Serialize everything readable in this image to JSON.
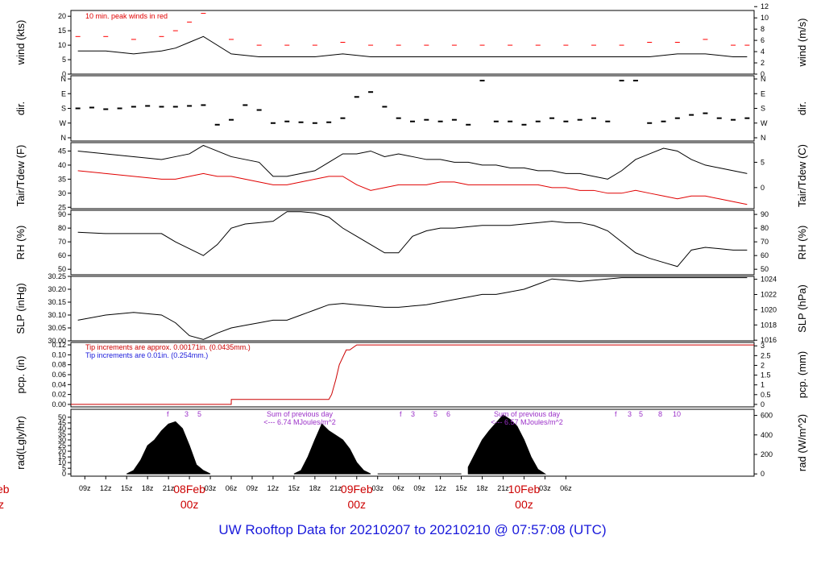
{
  "title": "UW Rooftop Data for 20210207  to  20210210 @ 07:57:08  (UTC)",
  "chart_data": [
    {
      "type": "line",
      "name": "wind",
      "ylabel": "wind (kts)",
      "ylabel_right": "wind (m/s)",
      "ylim": [
        0,
        22
      ],
      "yticks": [
        "0",
        "5",
        "10",
        "15",
        "20"
      ],
      "yticks_right": [
        "0",
        "2",
        "4",
        "6",
        "8",
        "10",
        "12"
      ],
      "annotation": "10 min. peak winds in red",
      "series": [
        {
          "label": "wind",
          "color": "#000000",
          "x": [
            8,
            12,
            16,
            20,
            22,
            24,
            26,
            30,
            34,
            38,
            42,
            46,
            50,
            54,
            58,
            62,
            66,
            70,
            74,
            78,
            82,
            86,
            90,
            94,
            98,
            102,
            104
          ],
          "values": [
            8,
            8,
            7,
            8,
            9,
            11,
            13,
            7,
            6,
            6,
            6,
            7,
            6,
            6,
            6,
            6,
            6,
            6,
            6,
            6,
            6,
            6,
            6,
            7,
            7,
            6,
            6
          ]
        },
        {
          "label": "peak",
          "color": "#ff0000",
          "x": [
            8,
            12,
            16,
            20,
            22,
            24,
            26,
            30,
            34,
            38,
            42,
            46,
            50,
            54,
            58,
            62,
            66,
            70,
            74,
            78,
            82,
            86,
            90,
            94,
            98,
            102,
            104
          ],
          "values": [
            13,
            13,
            12,
            13,
            15,
            18,
            21,
            12,
            10,
            10,
            10,
            11,
            10,
            10,
            10,
            10,
            10,
            10,
            10,
            10,
            10,
            10,
            11,
            11,
            12,
            10,
            10
          ]
        }
      ]
    },
    {
      "type": "scatter",
      "name": "dir",
      "ylabel": "dir.",
      "ylabel_right": "dir.",
      "yticks": [
        "N",
        "W",
        "S",
        "E",
        "N"
      ],
      "series": [
        {
          "label": "dir",
          "color": "#000000",
          "x": [
            8,
            10,
            12,
            14,
            16,
            18,
            20,
            22,
            24,
            26,
            28,
            30,
            32,
            34,
            36,
            38,
            40,
            42,
            44,
            46,
            48,
            50,
            52,
            54,
            56,
            58,
            60,
            62,
            64,
            66,
            68,
            70,
            72,
            74,
            76,
            78,
            80,
            82,
            84,
            86,
            88,
            90,
            92,
            94,
            96,
            98,
            100,
            102,
            104
          ],
          "values": [
            180,
            185,
            175,
            180,
            190,
            195,
            190,
            190,
            195,
            200,
            80,
            110,
            200,
            170,
            90,
            100,
            95,
            90,
            95,
            120,
            250,
            280,
            190,
            120,
            100,
            110,
            100,
            110,
            80,
            350,
            100,
            100,
            80,
            100,
            120,
            100,
            110,
            120,
            100,
            350,
            350,
            90,
            100,
            120,
            140,
            150,
            120,
            110,
            120
          ]
        }
      ]
    },
    {
      "type": "line",
      "name": "tair",
      "ylabel": "Tair/Tdew (F)",
      "ylabel_right": "Tair/Tdew (C)",
      "ylim": [
        24.5,
        48
      ],
      "yticks": [
        "25",
        "30",
        "35",
        "40",
        "45"
      ],
      "yticks_right": [
        "0",
        "5"
      ],
      "series": [
        {
          "label": "Tair",
          "color": "#000000",
          "x": [
            8,
            12,
            16,
            20,
            22,
            24,
            26,
            28,
            30,
            32,
            34,
            36,
            38,
            40,
            42,
            44,
            46,
            48,
            50,
            52,
            54,
            56,
            58,
            60,
            62,
            64,
            66,
            68,
            70,
            72,
            74,
            76,
            78,
            80,
            82,
            84,
            86,
            88,
            90,
            92,
            94,
            96,
            98,
            100,
            102,
            104
          ],
          "values": [
            45,
            44,
            43,
            42,
            43,
            44,
            47,
            45,
            43,
            42,
            41,
            36,
            36,
            37,
            38,
            41,
            44,
            44,
            45,
            43,
            44,
            43,
            42,
            42,
            41,
            41,
            40,
            40,
            39,
            39,
            38,
            38,
            37,
            37,
            36,
            35,
            38,
            42,
            44,
            46,
            45,
            42,
            40,
            39,
            38,
            37
          ]
        },
        {
          "label": "Tdew",
          "color": "#e00000",
          "x": [
            8,
            12,
            16,
            20,
            22,
            24,
            26,
            28,
            30,
            32,
            34,
            36,
            38,
            40,
            42,
            44,
            46,
            48,
            50,
            52,
            54,
            56,
            58,
            60,
            62,
            64,
            66,
            68,
            70,
            72,
            74,
            76,
            78,
            80,
            82,
            84,
            86,
            88,
            90,
            92,
            94,
            96,
            98,
            100,
            102,
            104
          ],
          "values": [
            38,
            37,
            36,
            35,
            35,
            36,
            37,
            36,
            36,
            35,
            34,
            33,
            33,
            34,
            35,
            36,
            36,
            33,
            31,
            32,
            33,
            33,
            33,
            34,
            34,
            33,
            33,
            33,
            33,
            33,
            33,
            32,
            32,
            31,
            31,
            30,
            30,
            31,
            30,
            29,
            28,
            29,
            29,
            28,
            27,
            26
          ]
        }
      ]
    },
    {
      "type": "line",
      "name": "rh",
      "ylabel": "RH (%)",
      "ylabel_right": "RH (%)",
      "ylim": [
        46,
        93
      ],
      "yticks": [
        "50",
        "60",
        "70",
        "80",
        "90"
      ],
      "yticks_right": [
        "50",
        "60",
        "70",
        "80",
        "90"
      ],
      "series": [
        {
          "label": "RH",
          "color": "#000000",
          "x": [
            8,
            12,
            16,
            20,
            22,
            24,
            26,
            28,
            30,
            32,
            34,
            36,
            38,
            40,
            42,
            44,
            46,
            48,
            50,
            52,
            54,
            56,
            58,
            60,
            62,
            64,
            66,
            68,
            70,
            72,
            74,
            76,
            78,
            80,
            82,
            84,
            86,
            88,
            90,
            92,
            94,
            96,
            98,
            100,
            102,
            104
          ],
          "values": [
            77,
            76,
            76,
            76,
            70,
            65,
            60,
            68,
            80,
            83,
            84,
            85,
            92,
            92,
            91,
            88,
            80,
            74,
            68,
            62,
            62,
            74,
            78,
            80,
            80,
            81,
            82,
            82,
            82,
            83,
            84,
            85,
            84,
            84,
            82,
            78,
            70,
            62,
            58,
            55,
            52,
            64,
            66,
            65,
            64,
            64
          ]
        }
      ]
    },
    {
      "type": "line",
      "name": "slp",
      "ylabel": "SLP (inHg)",
      "ylabel_right": "SLP (hPa)",
      "ylim": [
        30.0,
        30.25
      ],
      "yticks": [
        "30.00",
        "30.05",
        "30.10",
        "30.15",
        "30.20",
        "30.25"
      ],
      "yticks_right": [
        "1016",
        "1018",
        "1020",
        "1022",
        "1024"
      ],
      "series": [
        {
          "label": "SLP",
          "color": "#000000",
          "x": [
            8,
            12,
            16,
            20,
            22,
            24,
            26,
            28,
            30,
            32,
            34,
            36,
            38,
            40,
            42,
            44,
            46,
            48,
            50,
            52,
            54,
            56,
            58,
            60,
            62,
            64,
            66,
            68,
            70,
            72,
            74,
            76,
            78,
            80,
            82,
            84,
            86,
            88,
            90,
            92,
            94,
            96,
            98,
            100,
            102,
            104
          ],
          "values": [
            30.08,
            30.1,
            30.11,
            30.1,
            30.07,
            30.02,
            30.005,
            30.03,
            30.05,
            30.06,
            30.07,
            30.08,
            30.08,
            30.1,
            30.12,
            30.14,
            30.145,
            30.14,
            30.135,
            30.13,
            30.13,
            30.135,
            30.14,
            30.15,
            30.16,
            30.17,
            30.18,
            30.18,
            30.19,
            30.2,
            30.22,
            30.24,
            30.235,
            30.23,
            30.235,
            30.24,
            30.245,
            30.245,
            30.245,
            30.245,
            30.245,
            30.245,
            30.245,
            30.245,
            30.245,
            30.245
          ]
        }
      ]
    },
    {
      "type": "line",
      "name": "pcp",
      "ylabel": "pcp. (in)",
      "ylabel_right": "pcp. (mm)",
      "ylim": [
        -0.005,
        0.125
      ],
      "yticks": [
        "0.00",
        "0.02",
        "0.04",
        "0.06",
        "0.08",
        "0.10",
        "0.12"
      ],
      "yticks_right": [
        "0",
        "0.5",
        "1",
        "1.5",
        "2",
        "2.5",
        "3"
      ],
      "annotations": [
        "Tip increments are approx. 0.00171in. (0.0435mm.)",
        "Tip increments are 0.01in. (0.254mm.)"
      ],
      "series": [
        {
          "label": "pcp",
          "color": "#cc0000",
          "x": [
            7,
            30,
            30.01,
            44,
            44.4,
            45,
            45.5,
            46.5,
            47,
            48,
            105
          ],
          "values": [
            0,
            0,
            0.01,
            0.01,
            0.02,
            0.05,
            0.08,
            0.11,
            0.11,
            0.12,
            0.12
          ]
        }
      ]
    },
    {
      "type": "area",
      "name": "rad",
      "ylabel": "rad(Lgly/hr)",
      "ylabel_right": "rad (W/m^2)",
      "ylim": [
        -2,
        57
      ],
      "yticks": [
        "0",
        "5",
        "10",
        "15",
        "20",
        "25",
        "30",
        "35",
        "40",
        "45",
        "50"
      ],
      "yticks_right": [
        "0",
        "200",
        "400",
        "600"
      ],
      "annotations": [
        "Sum of previous day",
        "<--- 6.74 MJoules/m^2",
        "Sum of previous day",
        "<--- 6.57 MJoules/m^2"
      ],
      "marks1": [
        "f",
        "3",
        "5"
      ],
      "marks2": [
        "f",
        "3",
        "5",
        "6"
      ],
      "marks3": [
        "f",
        "3",
        "5",
        "8",
        "10"
      ],
      "series": [
        {
          "label": "rad",
          "color": "#000000",
          "x": [
            15,
            16,
            17,
            18,
            19,
            20,
            21,
            22,
            23,
            24,
            25,
            26,
            27,
            39,
            40,
            41,
            42,
            43,
            44,
            45,
            46,
            47,
            48,
            49,
            50,
            51,
            63,
            64,
            65,
            66,
            67,
            68,
            69,
            70,
            71,
            72,
            73,
            74,
            75
          ],
          "values": [
            0,
            3,
            12,
            25,
            30,
            38,
            44,
            46,
            40,
            25,
            8,
            3,
            0,
            0,
            3,
            15,
            30,
            44,
            38,
            34,
            30,
            22,
            10,
            3,
            0,
            0,
            0,
            6,
            18,
            30,
            38,
            45,
            52,
            48,
            42,
            30,
            15,
            4,
            0
          ]
        }
      ]
    }
  ],
  "xaxis": {
    "ticks": [
      "09z",
      "12z",
      "15z",
      "18z",
      "21z",
      "00z",
      "03z",
      "06z",
      "09z",
      "12z",
      "15z",
      "18z",
      "21z",
      "00z",
      "03z",
      "06z",
      "09z",
      "12z",
      "15z",
      "18z",
      "21z",
      "00z",
      "03z",
      "06z"
    ],
    "day_labels": [
      "eb",
      "08Feb",
      "09Feb",
      "10Feb"
    ],
    "z_label": "00z",
    "z_partial": "z"
  }
}
